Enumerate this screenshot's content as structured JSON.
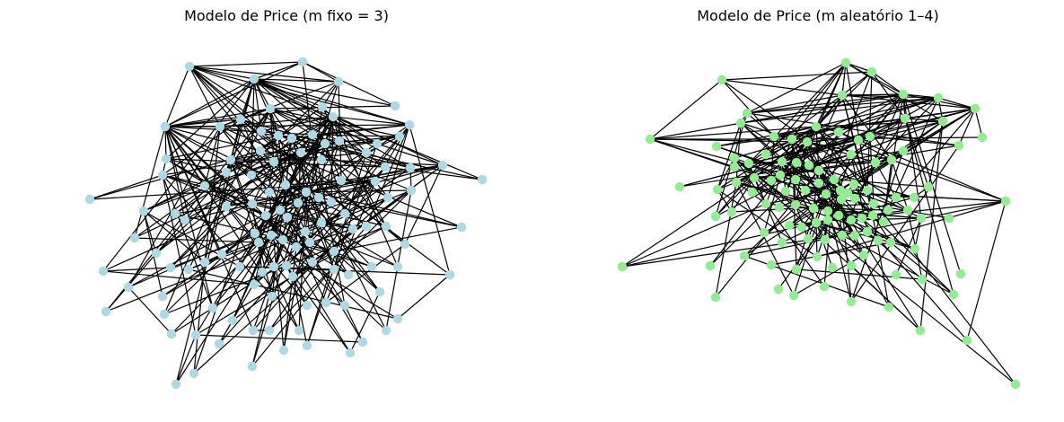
{
  "titles": {
    "left": "Modelo de Price (m fixo = 3)",
    "right": "Modelo de Price (m aleatório 1–4)"
  },
  "colors": {
    "left_node": "#add8e6",
    "right_node": "#90ee90",
    "edge": "#000000",
    "background": "#ffffff"
  }
}
